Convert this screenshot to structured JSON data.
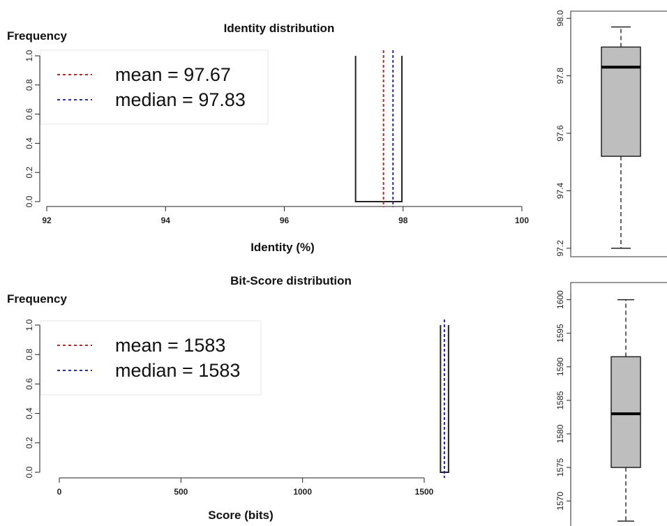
{
  "chart_data": [
    {
      "type": "histogram",
      "title": "Identity distribution",
      "ylabel_top": "Frequency",
      "xlabel": "Identity (%)",
      "xlim": [
        92,
        100
      ],
      "ylim": [
        0,
        1.0
      ],
      "x_ticks": [
        "92",
        "94",
        "96",
        "98",
        "100"
      ],
      "y_ticks": [
        "0.0",
        "0.2",
        "0.4",
        "0.6",
        "0.8",
        "1.0"
      ],
      "bins": [
        {
          "x0": 97.2,
          "x1": 97.98,
          "value": 1.0
        }
      ],
      "mean": 97.67,
      "median": 97.83,
      "legend": {
        "mean": "mean = 97.67",
        "median": "median = 97.83",
        "position": "top-left"
      },
      "colors": {
        "mean": "#b02a2a",
        "median": "#2b2b9c"
      }
    },
    {
      "type": "boxplot",
      "ylim": [
        97.19,
        98.02
      ],
      "y_ticks": [
        "97.2",
        "97.4",
        "97.6",
        "97.8",
        "98.0"
      ],
      "whisker_low": 97.2,
      "q1": 97.52,
      "median": 97.83,
      "q3": 97.9,
      "whisker_high": 97.97,
      "box_color": "#bebebe"
    },
    {
      "type": "histogram",
      "title": "Bit-Score distribution",
      "ylabel_top": "Frequency",
      "xlabel": "Score (bits)",
      "xlim": [
        0,
        1500
      ],
      "ylim": [
        0,
        1.0
      ],
      "x_ticks": [
        "0",
        "500",
        "1000",
        "1500"
      ],
      "y_ticks": [
        "0.0",
        "0.2",
        "0.4",
        "0.6",
        "0.8",
        "1.0"
      ],
      "bins": [
        {
          "x0": 1567,
          "x1": 1600,
          "value": 1.0
        }
      ],
      "mean": 1583,
      "median": 1583,
      "legend": {
        "mean": "mean = 1583",
        "median": "median = 1583",
        "position": "top-left"
      },
      "colors": {
        "mean": "#b02a2a",
        "median": "#2b2b9c"
      }
    },
    {
      "type": "boxplot",
      "ylim": [
        1567,
        1601
      ],
      "y_ticks": [
        "1570",
        "1575",
        "1580",
        "1585",
        "1590",
        "1595",
        "1600"
      ],
      "whisker_low": 1567,
      "q1": 1575,
      "median": 1583,
      "q3": 1591.5,
      "whisker_high": 1600,
      "box_color": "#bebebe"
    }
  ]
}
